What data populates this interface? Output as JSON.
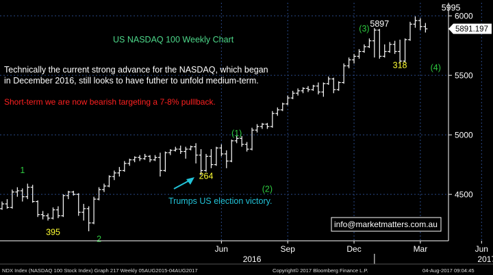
{
  "chart_data": {
    "type": "ohlc",
    "title": "US NASDAQ 100 Weekly Chart",
    "commentary": "Technically the current strong advance for the NASDAQ, which began in December 2016, still looks to have futher to unfold medium-term.",
    "commentary_line1": "Technically the current strong advance for the NASDAQ, which began",
    "commentary_line2": "in December 2016, still looks to have futher to unfold medium-term.",
    "warning": "Short-term we are now bearish targeting a 7-8% pulllback.",
    "yaxis": {
      "ticks": [
        4500,
        5000,
        5500,
        6000
      ],
      "ylim": [
        4110,
        6110
      ],
      "side": "right"
    },
    "xaxis": {
      "month_labels": [
        {
          "label": "Jun",
          "week": 43
        },
        {
          "label": "Sep",
          "week": 56
        },
        {
          "label": "Dec",
          "week": 69
        },
        {
          "label": "Mar",
          "week": 82
        },
        {
          "label": "Jun",
          "week": 94
        }
      ],
      "year_labels": [
        {
          "label": "2016",
          "week": 49
        },
        {
          "label": "2017",
          "week": 95
        }
      ],
      "year_separator_week": 73,
      "vgrid_weeks": [
        43,
        56,
        69,
        82,
        94
      ]
    },
    "last_price": 5891.197,
    "last_price_label": "5891.197",
    "weeks": [
      {
        "o": 4380,
        "h": 4440,
        "l": 4370,
        "c": 4420
      },
      {
        "o": 4420,
        "h": 4460,
        "l": 4380,
        "c": 4390
      },
      {
        "o": 4390,
        "h": 4540,
        "l": 4380,
        "c": 4520
      },
      {
        "o": 4520,
        "h": 4560,
        "l": 4480,
        "c": 4530
      },
      {
        "o": 4530,
        "h": 4550,
        "l": 4440,
        "c": 4480
      },
      {
        "o": 4480,
        "h": 4590,
        "l": 4460,
        "c": 4560
      },
      {
        "o": 4560,
        "h": 4580,
        "l": 4430,
        "c": 4440
      },
      {
        "o": 4440,
        "h": 4450,
        "l": 4310,
        "c": 4330
      },
      {
        "o": 4330,
        "h": 4360,
        "l": 4290,
        "c": 4320
      },
      {
        "o": 4320,
        "h": 4340,
        "l": 4280,
        "c": 4300
      },
      {
        "o": 4300,
        "h": 4390,
        "l": 4290,
        "c": 4370
      },
      {
        "o": 4370,
        "h": 4400,
        "l": 4300,
        "c": 4320
      },
      {
        "o": 4320,
        "h": 4500,
        "l": 4310,
        "c": 4490
      },
      {
        "o": 4490,
        "h": 4530,
        "l": 4460,
        "c": 4520
      },
      {
        "o": 4520,
        "h": 4530,
        "l": 4490,
        "c": 4500
      },
      {
        "o": 4500,
        "h": 4510,
        "l": 4320,
        "c": 4350
      },
      {
        "o": 4350,
        "h": 4420,
        "l": 4280,
        "c": 4380
      },
      {
        "o": 4380,
        "h": 4400,
        "l": 4190,
        "c": 4260
      },
      {
        "o": 4260,
        "h": 4480,
        "l": 4250,
        "c": 4460
      },
      {
        "o": 4460,
        "h": 4560,
        "l": 4450,
        "c": 4540
      },
      {
        "o": 4540,
        "h": 4590,
        "l": 4520,
        "c": 4570
      },
      {
        "o": 4570,
        "h": 4660,
        "l": 4560,
        "c": 4650
      },
      {
        "o": 4650,
        "h": 4700,
        "l": 4620,
        "c": 4680
      },
      {
        "o": 4680,
        "h": 4730,
        "l": 4650,
        "c": 4700
      },
      {
        "o": 4700,
        "h": 4780,
        "l": 4690,
        "c": 4760
      },
      {
        "o": 4760,
        "h": 4800,
        "l": 4740,
        "c": 4790
      },
      {
        "o": 4790,
        "h": 4820,
        "l": 4770,
        "c": 4810
      },
      {
        "o": 4810,
        "h": 4830,
        "l": 4780,
        "c": 4800
      },
      {
        "o": 4800,
        "h": 4840,
        "l": 4790,
        "c": 4820
      },
      {
        "o": 4820,
        "h": 4830,
        "l": 4770,
        "c": 4790
      },
      {
        "o": 4790,
        "h": 4830,
        "l": 4780,
        "c": 4810
      },
      {
        "o": 4810,
        "h": 4850,
        "l": 4650,
        "c": 4700
      },
      {
        "o": 4700,
        "h": 4860,
        "l": 4690,
        "c": 4850
      },
      {
        "o": 4850,
        "h": 4880,
        "l": 4830,
        "c": 4870
      },
      {
        "o": 4870,
        "h": 4900,
        "l": 4860,
        "c": 4880
      },
      {
        "o": 4880,
        "h": 4910,
        "l": 4840,
        "c": 4860
      },
      {
        "o": 4860,
        "h": 4900,
        "l": 4800,
        "c": 4880
      },
      {
        "o": 4880,
        "h": 4910,
        "l": 4870,
        "c": 4900
      },
      {
        "o": 4900,
        "h": 4930,
        "l": 4760,
        "c": 4830
      },
      {
        "o": 4830,
        "h": 4880,
        "l": 4660,
        "c": 4700
      },
      {
        "o": 4700,
        "h": 4840,
        "l": 4690,
        "c": 4820
      },
      {
        "o": 4820,
        "h": 4880,
        "l": 4720,
        "c": 4750
      },
      {
        "o": 4750,
        "h": 4900,
        "l": 4740,
        "c": 4890
      },
      {
        "o": 4890,
        "h": 4920,
        "l": 4820,
        "c": 4840
      },
      {
        "o": 4840,
        "h": 4870,
        "l": 4720,
        "c": 4780
      },
      {
        "o": 4780,
        "h": 4960,
        "l": 4770,
        "c": 4950
      },
      {
        "o": 4950,
        "h": 4990,
        "l": 4930,
        "c": 4970
      },
      {
        "o": 4970,
        "h": 4990,
        "l": 4900,
        "c": 4920
      },
      {
        "o": 4920,
        "h": 4940,
        "l": 4860,
        "c": 4880
      },
      {
        "o": 4880,
        "h": 5060,
        "l": 4870,
        "c": 5040
      },
      {
        "o": 5040,
        "h": 5090,
        "l": 5020,
        "c": 5070
      },
      {
        "o": 5070,
        "h": 5100,
        "l": 5050,
        "c": 5090
      },
      {
        "o": 5090,
        "h": 5100,
        "l": 5050,
        "c": 5070
      },
      {
        "o": 5070,
        "h": 5200,
        "l": 5060,
        "c": 5180
      },
      {
        "o": 5180,
        "h": 5230,
        "l": 5160,
        "c": 5210
      },
      {
        "o": 5210,
        "h": 5270,
        "l": 5200,
        "c": 5260
      },
      {
        "o": 5260,
        "h": 5330,
        "l": 5250,
        "c": 5310
      },
      {
        "o": 5310,
        "h": 5370,
        "l": 5300,
        "c": 5350
      },
      {
        "o": 5350,
        "h": 5390,
        "l": 5330,
        "c": 5370
      },
      {
        "o": 5370,
        "h": 5400,
        "l": 5350,
        "c": 5390
      },
      {
        "o": 5390,
        "h": 5410,
        "l": 5360,
        "c": 5380
      },
      {
        "o": 5380,
        "h": 5420,
        "l": 5370,
        "c": 5410
      },
      {
        "o": 5410,
        "h": 5440,
        "l": 5340,
        "c": 5360
      },
      {
        "o": 5360,
        "h": 5440,
        "l": 5320,
        "c": 5430
      },
      {
        "o": 5430,
        "h": 5490,
        "l": 5420,
        "c": 5470
      },
      {
        "o": 5470,
        "h": 5480,
        "l": 5350,
        "c": 5380
      },
      {
        "o": 5380,
        "h": 5450,
        "l": 5370,
        "c": 5440
      },
      {
        "o": 5440,
        "h": 5600,
        "l": 5430,
        "c": 5580
      },
      {
        "o": 5580,
        "h": 5650,
        "l": 5560,
        "c": 5630
      },
      {
        "o": 5630,
        "h": 5680,
        "l": 5600,
        "c": 5660
      },
      {
        "o": 5660,
        "h": 5720,
        "l": 5640,
        "c": 5700
      },
      {
        "o": 5700,
        "h": 5760,
        "l": 5690,
        "c": 5740
      },
      {
        "o": 5740,
        "h": 5810,
        "l": 5730,
        "c": 5790
      },
      {
        "o": 5790,
        "h": 5897,
        "l": 5650,
        "c": 5880
      },
      {
        "o": 5880,
        "h": 5890,
        "l": 5640,
        "c": 5660
      },
      {
        "o": 5660,
        "h": 5760,
        "l": 5650,
        "c": 5700
      },
      {
        "o": 5700,
        "h": 5780,
        "l": 5690,
        "c": 5760
      },
      {
        "o": 5760,
        "h": 5790,
        "l": 5680,
        "c": 5700
      },
      {
        "o": 5700,
        "h": 5800,
        "l": 5600,
        "c": 5620
      },
      {
        "o": 5620,
        "h": 5810,
        "l": 5610,
        "c": 5800
      },
      {
        "o": 5800,
        "h": 5950,
        "l": 5790,
        "c": 5930
      },
      {
        "o": 5930,
        "h": 5995,
        "l": 5900,
        "c": 5960
      },
      {
        "o": 5960,
        "h": 5980,
        "l": 5880,
        "c": 5910
      },
      {
        "o": 5910,
        "h": 5940,
        "l": 5860,
        "c": 5891
      }
    ],
    "annotations": [
      {
        "text": "1",
        "week": 4,
        "price": 4680,
        "color": "#2ecc40"
      },
      {
        "text": "395",
        "week": 10,
        "price": 4160,
        "color": "#ffff33"
      },
      {
        "text": "2",
        "week": 19,
        "price": 4100,
        "color": "#2ecc40"
      },
      {
        "text": "264",
        "week": 40,
        "price": 4630,
        "color": "#ffff33"
      },
      {
        "text": "(1)",
        "week": 46,
        "price": 4990,
        "color": "#2ecc40"
      },
      {
        "text": "(2)",
        "week": 52,
        "price": 4520,
        "color": "#2ecc40"
      },
      {
        "text": "(3)",
        "week": 71,
        "price": 5870,
        "color": "#2ecc40"
      },
      {
        "text": "5897",
        "week": 74,
        "price": 5910,
        "color": "#ffffff"
      },
      {
        "text": "318",
        "week": 78,
        "price": 5560,
        "color": "#ffff33"
      },
      {
        "text": "(4)",
        "week": 85,
        "price": 5540,
        "color": "#2ecc40"
      },
      {
        "text": "5995",
        "week": 88,
        "price": 6045,
        "color": "#ffffff"
      }
    ],
    "election_label": "Trumps US election victory.",
    "footer": {
      "left": "NDX Index (NASDAQ 100 Stock Index) Graph 217  Weekly 05AUG2015-04AUG2017",
      "center": "Copyright© 2017 Bloomberg Finance L.P.",
      "right": "04-Aug-2017 09:04:45"
    },
    "email": "info@marketmatters.com.au",
    "colors": {
      "background": "#000000",
      "bars": "#ffffff",
      "grid": "#2a4a8a",
      "title": "#4dd88a",
      "commentary": "#ffffff",
      "warning": "#ff2020",
      "arrow": "#22c3d8",
      "election_text": "#22c3d8",
      "axis": "#ffffff",
      "footer_bg": "#000000",
      "footer_text": "#dddddd"
    }
  }
}
